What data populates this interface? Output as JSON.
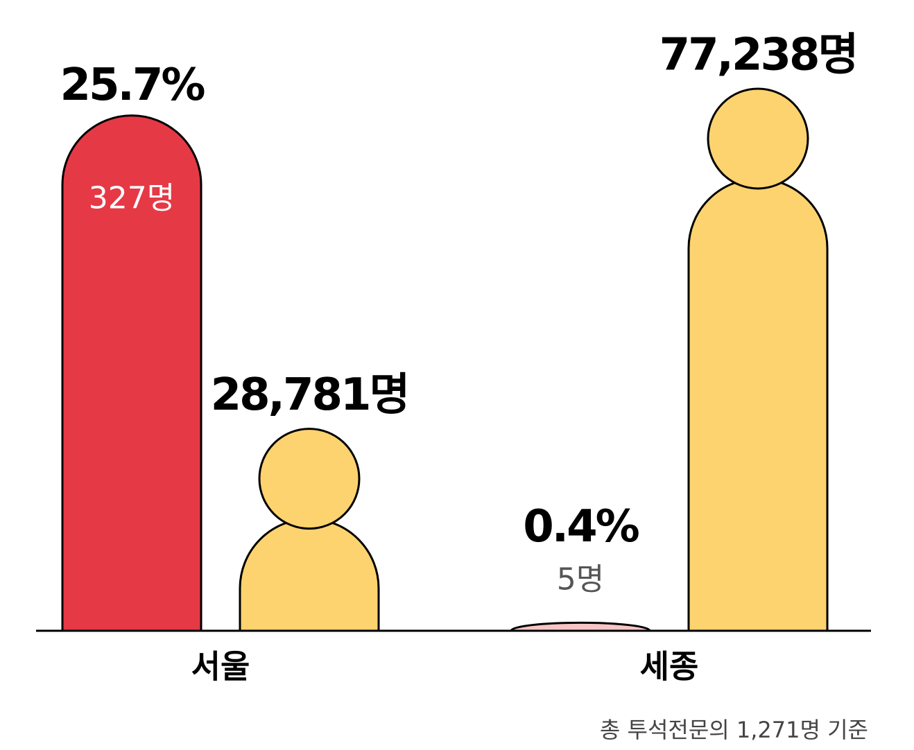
{
  "chart_data": {
    "type": "bar",
    "categories": [
      "서울",
      "세종"
    ],
    "series": [
      {
        "colors": [
          "#e63946",
          "#f7c5c5"
        ],
        "values": [
          25.7,
          0.4
        ],
        "value_labels": [
          "25.7%",
          "0.4%"
        ],
        "count_labels": [
          "327명",
          "5명"
        ]
      },
      {
        "color": "#fdd36f",
        "axis": "y2",
        "values": [
          28781,
          77238
        ],
        "value_labels": [
          "28,781명",
          "77,238명"
        ]
      }
    ],
    "ylim": [
      0,
      28
    ],
    "y2lim": [
      0,
      80000
    ],
    "note": "총 투석전문의 1,271명 기준"
  }
}
